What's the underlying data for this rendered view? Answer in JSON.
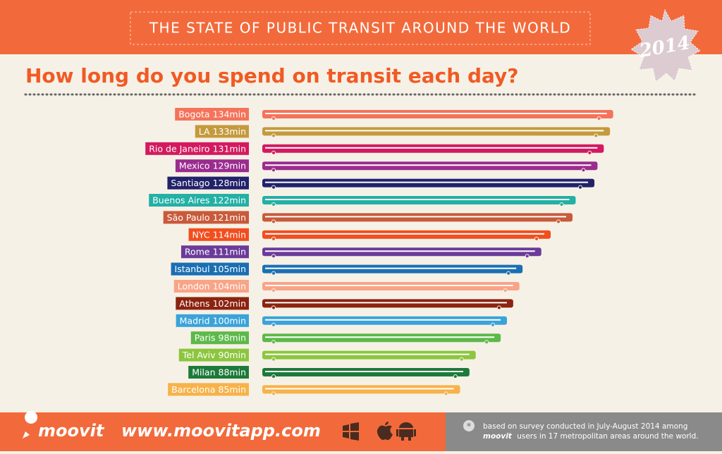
{
  "header": {
    "banner": "THE STATE OF PUBLIC TRANSIT AROUND THE WORLD",
    "badge": "2014"
  },
  "chart_data": {
    "type": "bar",
    "title": "How long do you spend on transit each day?",
    "categories": [
      "Bogota",
      "LA",
      "Rio de Janeiro",
      "Mexico",
      "Santiago",
      "Buenos Aires",
      "São Paulo",
      "NYC",
      "Rome",
      "Istanbul",
      "London",
      "Athens",
      "Madrid",
      "Paris",
      "Tel Aviv",
      "Milan",
      "Barcelona"
    ],
    "values": [
      134,
      133,
      131,
      129,
      128,
      122,
      121,
      114,
      111,
      105,
      104,
      102,
      100,
      98,
      90,
      88,
      85
    ],
    "value_labels": [
      "134min",
      "133min",
      "131min",
      "129min",
      "128min",
      "122min",
      "121min",
      "114min",
      "111min",
      "105min",
      "104min",
      "102min",
      "100min",
      "98min",
      "90min",
      "88min",
      "85min"
    ],
    "colors": [
      "#f4735a",
      "#c49a3c",
      "#d3195f",
      "#9b2c8f",
      "#22226b",
      "#23b0a5",
      "#c95a3a",
      "#f24e1e",
      "#6b3b9a",
      "#1a6fb4",
      "#f9a487",
      "#8b2310",
      "#3aa3da",
      "#5db94a",
      "#8cc63f",
      "#1d7a3a",
      "#f7b24a"
    ]
  },
  "footer": {
    "brand": "moovit",
    "url": "www.moovitapp.com",
    "note_line1": "based on survey conducted in July-August 2014 among",
    "note_brand": "moovit",
    "note_line2": "users in 17 metropolitan areas around the world."
  }
}
